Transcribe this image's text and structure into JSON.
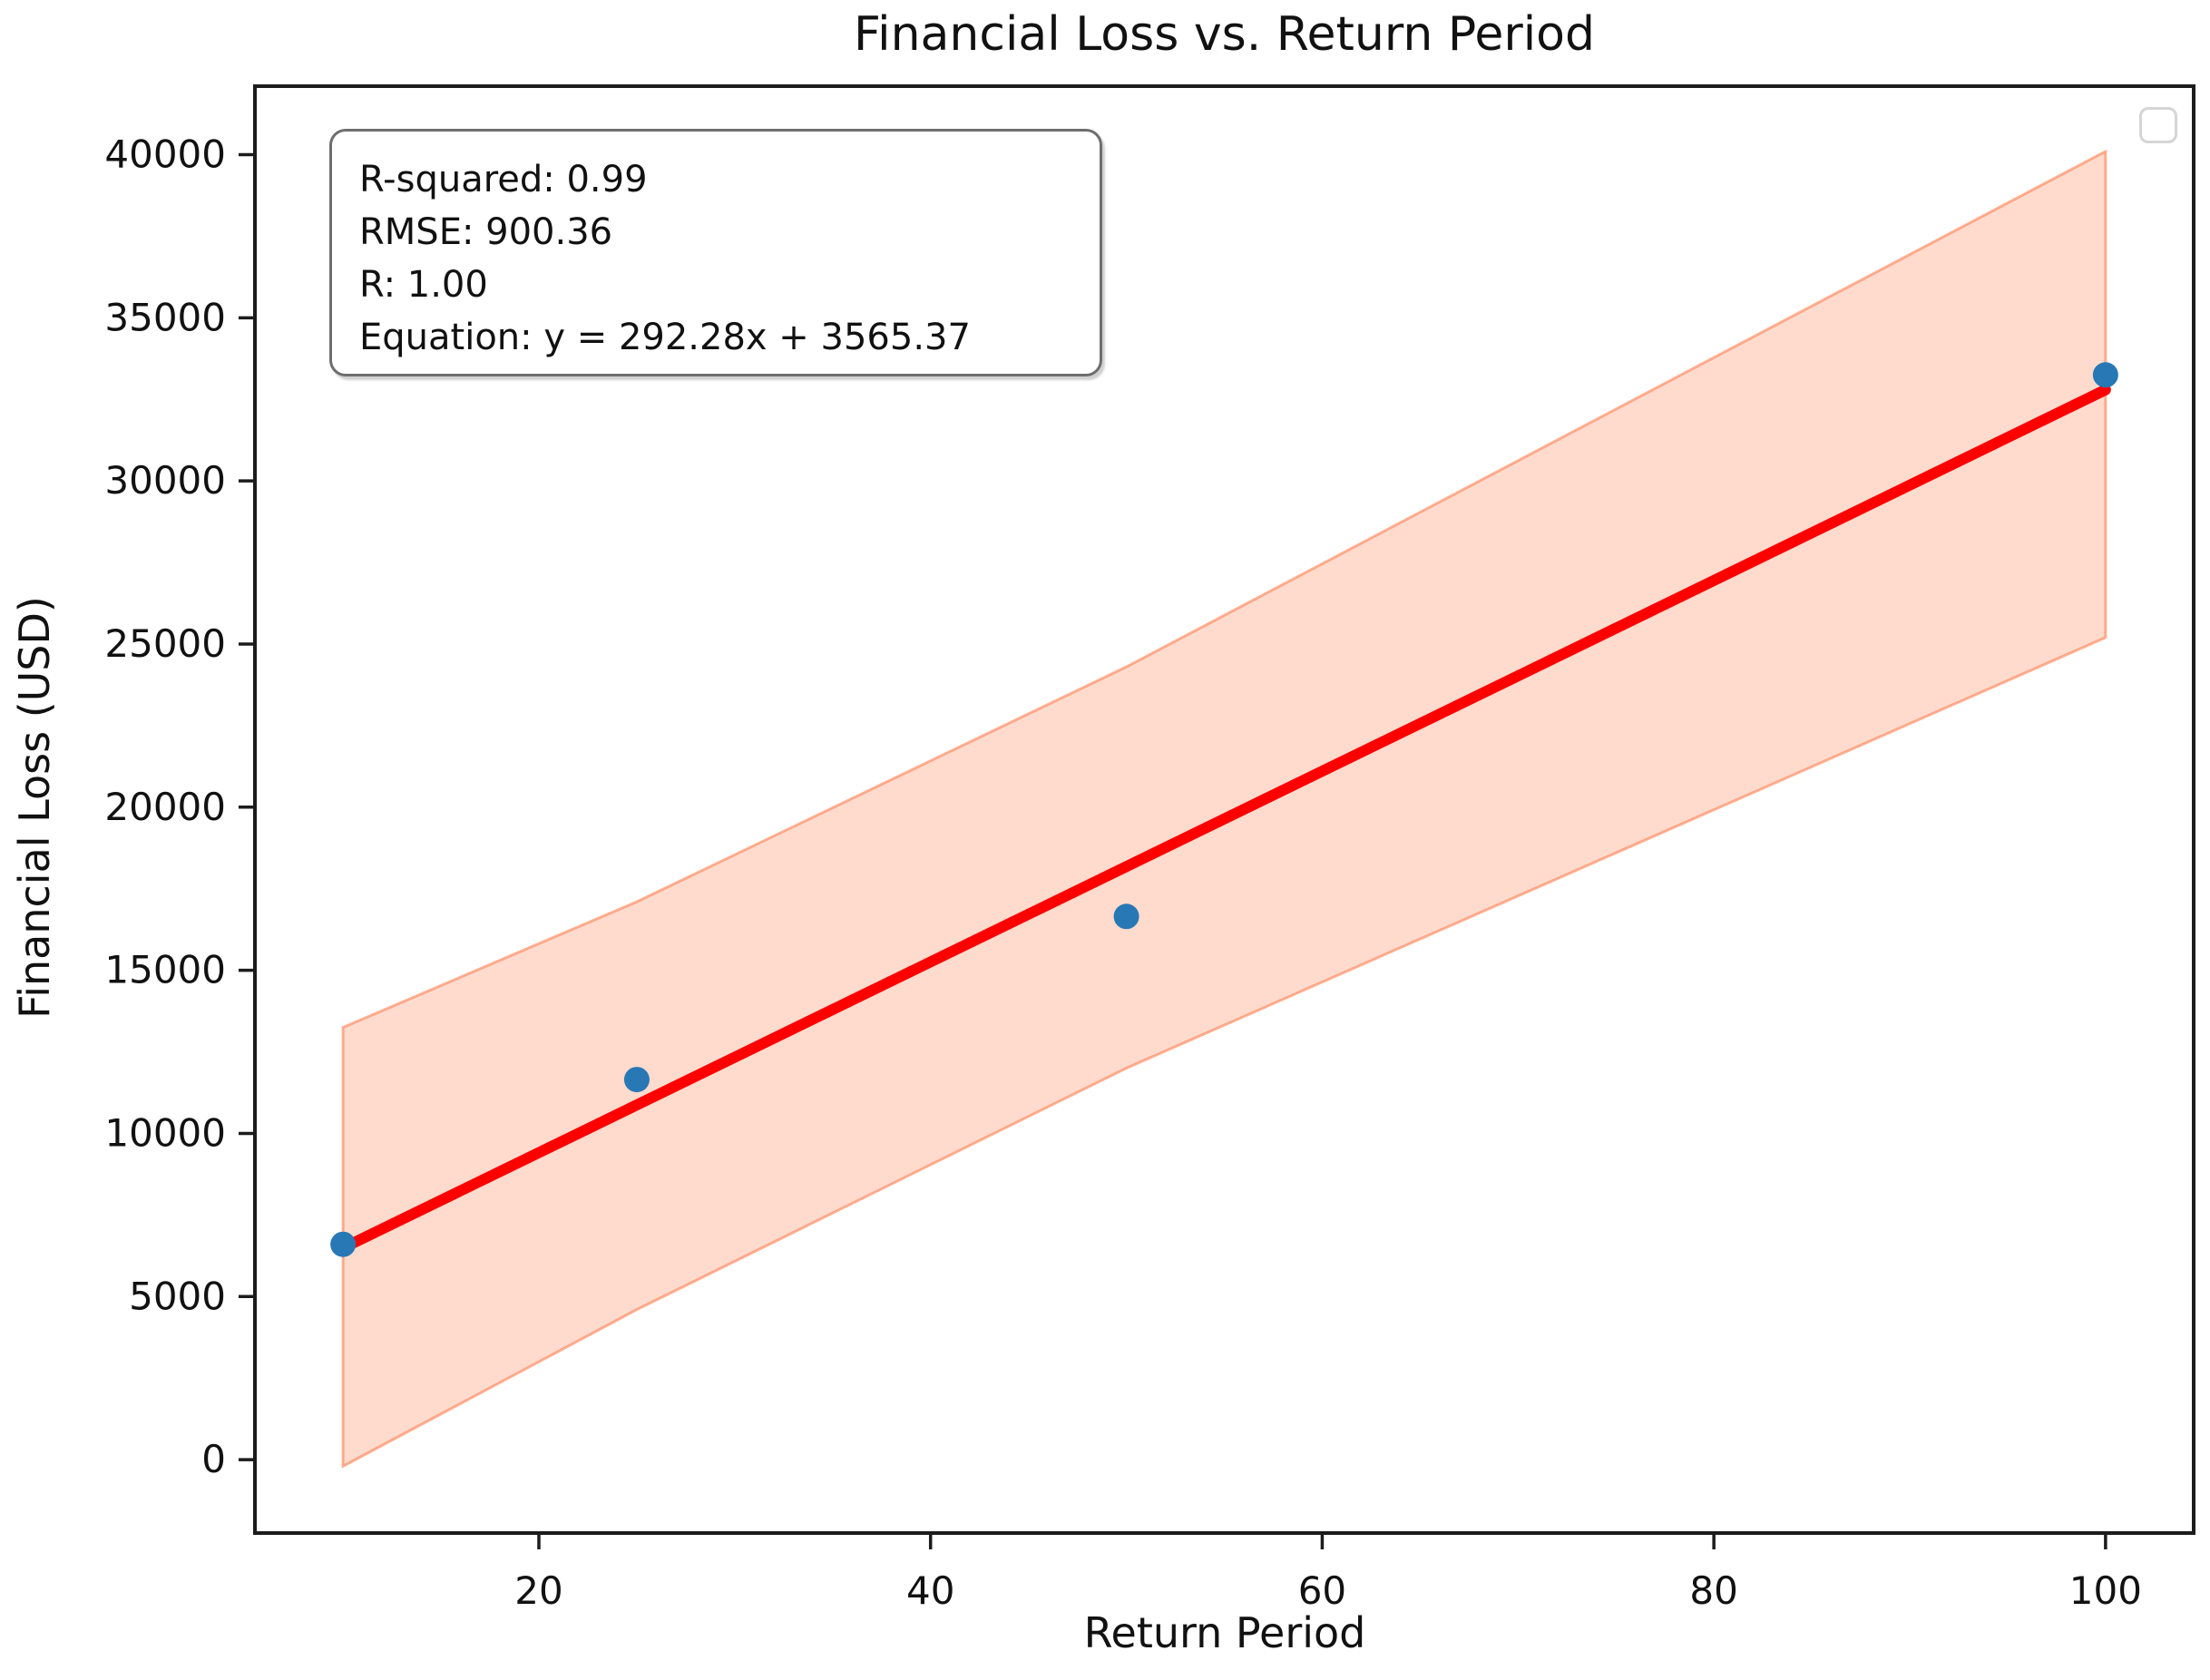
{
  "chart_data": {
    "type": "scatter",
    "title": "Financial Loss vs. Return Period",
    "xlabel": "Return Period",
    "ylabel": "Financial Loss (USD)",
    "x_ticks": [
      20,
      40,
      60,
      80,
      100
    ],
    "y_ticks": [
      0,
      5000,
      10000,
      15000,
      20000,
      25000,
      30000,
      35000,
      40000
    ],
    "xlim": [
      5.5,
      104.5
    ],
    "ylim": [
      -2250,
      42100
    ],
    "grid": false,
    "legend_position": "upper right",
    "legend_entries": [],
    "points": {
      "x": [
        10,
        25,
        50,
        100
      ],
      "y": [
        6600,
        11650,
        16650,
        33250
      ]
    },
    "regression": {
      "slope": 292.28,
      "intercept": 3565.37,
      "x_start": 10,
      "x_end": 100
    },
    "confidence_band": {
      "x": [
        10,
        25,
        50,
        100
      ],
      "upper": [
        13250,
        17100,
        24300,
        40100
      ],
      "lower": [
        -200,
        4600,
        12000,
        25200
      ]
    }
  },
  "annotation": {
    "lines": [
      "R-squared: 0.99",
      "RMSE: 900.36",
      "R: 1.00",
      "Equation: y = 292.28x + 3565.37"
    ]
  },
  "colors": {
    "scatter_point": "#2878b5",
    "regression_line": "#ff0000",
    "band_fill": "rgba(255,127,80,0.28)",
    "band_edge": "rgba(255,127,80,0.6)",
    "annotation_bg": "#f9ead1",
    "annotation_border": "#6e6e6e",
    "legend_border": "#d5d5d5",
    "axis": "#1c1c1c"
  }
}
